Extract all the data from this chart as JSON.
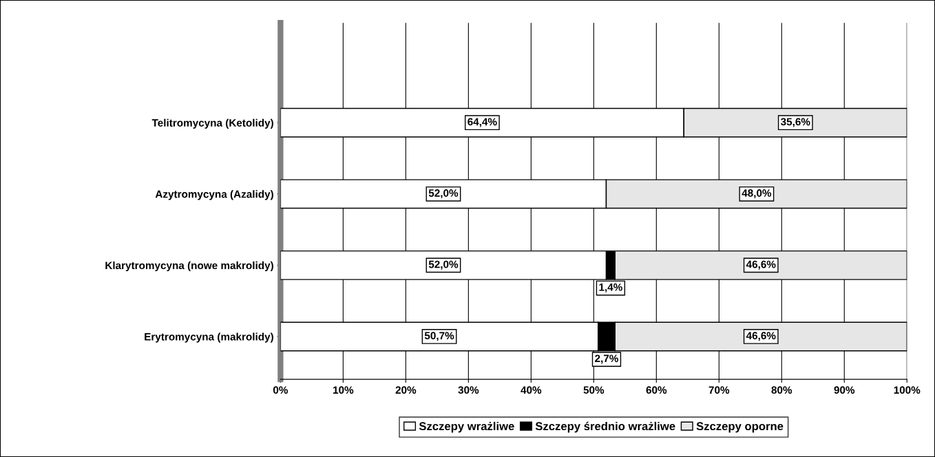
{
  "chart_data": {
    "type": "bar",
    "orientation": "horizontal",
    "stacked": true,
    "categories": [
      "Telitromycyna (Ketolidy)",
      "Azytromycyna (Azalidy)",
      "Klarytromycyna (nowe makrolidy)",
      "Erytromycyna (makrolidy)"
    ],
    "series": [
      {
        "name": "Szczepy wrażliwe",
        "color": "#ffffff",
        "values": [
          64.4,
          52.0,
          52.0,
          50.7
        ],
        "value_labels": [
          "64,4%",
          "52,0%",
          "52,0%",
          "50,7%"
        ]
      },
      {
        "name": "Szczepy średnio wrażliwe",
        "color": "#000000",
        "values": [
          0,
          0,
          1.4,
          2.7
        ],
        "value_labels": [
          null,
          null,
          "1,4%",
          "2,7%"
        ]
      },
      {
        "name": "Szczepy oporne",
        "color": "#e6e6e6",
        "values": [
          35.6,
          48.0,
          46.6,
          46.6
        ],
        "value_labels": [
          "35,6%",
          "48,0%",
          "46,6%",
          "46,6%"
        ]
      }
    ],
    "xlim": [
      0,
      100
    ],
    "xticks": [
      {
        "value": 0,
        "label": "0%"
      },
      {
        "value": 10,
        "label": "10%"
      },
      {
        "value": 20,
        "label": "20%"
      },
      {
        "value": 30,
        "label": "30%"
      },
      {
        "value": 40,
        "label": "40%"
      },
      {
        "value": 50,
        "label": "50%"
      },
      {
        "value": 60,
        "label": "60%"
      },
      {
        "value": 70,
        "label": "70%"
      },
      {
        "value": 80,
        "label": "80%"
      },
      {
        "value": 90,
        "label": "90%"
      },
      {
        "value": 100,
        "label": "100%"
      }
    ],
    "grid": "x",
    "legend": "bottom"
  }
}
